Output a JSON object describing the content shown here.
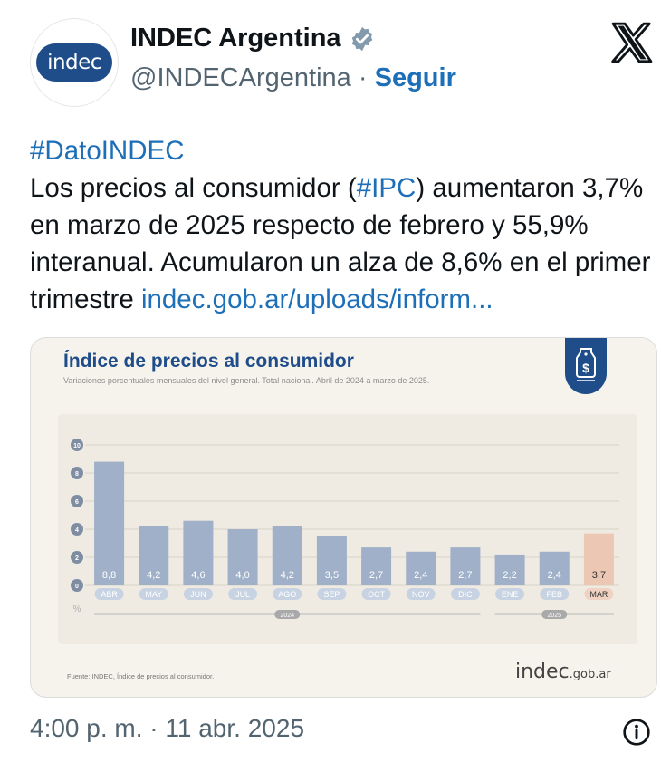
{
  "author": {
    "avatar_text": "indec",
    "name": "INDEC Argentina",
    "handle": "@INDECArgentina",
    "separator": "·",
    "follow_label": "Seguir",
    "verified_icon": "verified-badge-icon"
  },
  "tweet": {
    "hashtag_line": "#DatoINDEC",
    "line1_before": "Los precios al consumidor (",
    "line1_hashtag": "#IPC",
    "line1_after": ") aumentaron 3,7%",
    "line2": "en marzo de 2025 respecto de febrero y 55,9%",
    "line3": "interanual. Acumularon un alza de 8,6% en el primer",
    "line4_before": "trimestre ",
    "line4_link": "indec.gob.ar/uploads/inform..."
  },
  "card": {
    "title": "Índice de precios al consumidor",
    "subtitle": "Variaciones porcentuales mensuales del nivel general. Total nacional. Abril de 2024 a marzo de 2025.",
    "source": "Fuente: INDEC, Índice de precios al consumidor.",
    "logo_main": "indec",
    "logo_suffix": ".gob.ar",
    "badge_icon": "price-tag-dollar-icon"
  },
  "chart_data": {
    "type": "bar",
    "categories": [
      "ABR",
      "MAY",
      "JUN",
      "JUL",
      "AGO",
      "SEP",
      "OCT",
      "NOV",
      "DIC",
      "ENE",
      "FEB",
      "MAR"
    ],
    "values": [
      8.8,
      4.2,
      4.6,
      4.0,
      4.2,
      3.5,
      2.7,
      2.4,
      2.7,
      2.2,
      2.4,
      3.7
    ],
    "value_labels": [
      "8,8",
      "4,2",
      "4,6",
      "4,0",
      "4,2",
      "3,5",
      "2,7",
      "2,4",
      "2,7",
      "2,2",
      "2,4",
      "3,7"
    ],
    "year_groups": [
      {
        "label": "2024",
        "from": "ABR",
        "to": "DIC"
      },
      {
        "label": "2025",
        "from": "ENE",
        "to": "MAR"
      }
    ],
    "highlight_index": 11,
    "ylim": [
      0,
      10
    ],
    "yticks": [
      0,
      2,
      4,
      6,
      8,
      10
    ],
    "yunit": "%",
    "grid": true,
    "colors": {
      "bar": "#9fb0c8",
      "bar_highlight": "#ecc7b4",
      "label_pill": "#c7d3e3",
      "label_pill_highlight": "#f0d2c2",
      "tick_circle": "#7f8da3"
    }
  },
  "footer": {
    "timestamp": "4:00 p. m. · 11 abr. 2025",
    "info_icon": "info-icon"
  },
  "colors": {
    "link": "#1d6fb8",
    "brand": "#1f4d8a",
    "muted": "#536471"
  }
}
